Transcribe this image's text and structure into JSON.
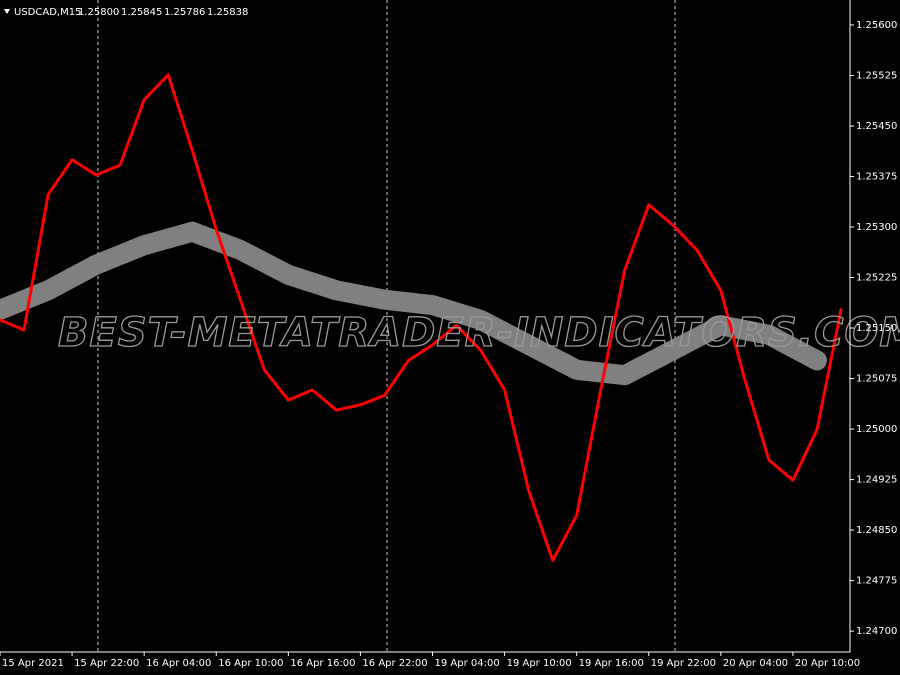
{
  "chart": {
    "symbol": "USDCAD,M15",
    "quote": [
      "1.25800",
      "1.25845",
      "1.25786",
      "1.25838"
    ],
    "watermark": "BEST-METATRADER-INDICATORS.COM",
    "ylim": [
      1.24669,
      1.25637
    ],
    "xlim": [
      0,
      283
    ],
    "yticks": [
      {
        "value": 1.256,
        "label": "1.25600"
      },
      {
        "value": 1.25525,
        "label": "1.25525"
      },
      {
        "value": 1.2545,
        "label": "1.25450"
      },
      {
        "value": 1.25375,
        "label": "1.25375"
      },
      {
        "value": 1.253,
        "label": "1.25300"
      },
      {
        "value": 1.25225,
        "label": "1.25225"
      },
      {
        "value": 1.2515,
        "label": "1.25150"
      },
      {
        "value": 1.25075,
        "label": "1.25075"
      },
      {
        "value": 1.25,
        "label": "1.25000"
      },
      {
        "value": 1.24925,
        "label": "1.24925"
      },
      {
        "value": 1.2485,
        "label": "1.24850"
      },
      {
        "value": 1.24775,
        "label": "1.24775"
      },
      {
        "value": 1.247,
        "label": "1.24700"
      }
    ],
    "xticks": [
      {
        "value": 0,
        "label": "15 Apr 2021"
      },
      {
        "value": 24,
        "label": "15 Apr 22:00"
      },
      {
        "value": 48,
        "label": "16 Apr 04:00"
      },
      {
        "value": 72,
        "label": "16 Apr 10:00"
      },
      {
        "value": 96,
        "label": "16 Apr 16:00"
      },
      {
        "value": 120,
        "label": "16 Apr 22:00"
      },
      {
        "value": 144,
        "label": "19 Apr 04:00"
      },
      {
        "value": 168,
        "label": "19 Apr 10:00"
      },
      {
        "value": 192,
        "label": "19 Apr 16:00"
      },
      {
        "value": 216,
        "label": "19 Apr 22:00"
      },
      {
        "value": 240,
        "label": "20 Apr 04:00"
      },
      {
        "value": 264,
        "label": "20 Apr 10:00"
      }
    ],
    "series": [
      {
        "color": "#808080",
        "x": [
          0,
          16,
          32,
          48,
          64,
          80,
          96,
          112,
          128,
          144,
          160,
          176,
          192,
          208,
          224,
          240,
          256,
          272
        ],
        "values": [
          1.25177,
          1.25206,
          1.25244,
          1.25273,
          1.25293,
          1.25266,
          1.25229,
          1.25206,
          1.25192,
          1.25184,
          1.25162,
          1.25125,
          1.25088,
          1.2508,
          1.25117,
          1.25154,
          1.2514,
          1.25102
        ]
      },
      {
        "color": "#ff0000",
        "x": [
          0,
          8,
          16,
          24,
          32,
          40,
          48,
          56,
          64,
          72,
          80,
          88,
          96,
          104,
          112,
          120,
          128,
          136,
          144,
          152,
          160,
          168,
          176,
          184,
          192,
          200,
          208,
          216,
          224,
          232,
          240,
          248,
          256,
          264,
          272,
          280
        ],
        "values": [
          1.25162,
          1.25147,
          1.25348,
          1.254,
          1.25377,
          1.25392,
          1.25489,
          1.25526,
          1.25414,
          1.25296,
          1.25192,
          1.25088,
          1.25043,
          1.25058,
          1.25028,
          1.25036,
          1.2505,
          1.25102,
          1.25125,
          1.25154,
          1.25117,
          1.25058,
          1.24909,
          1.24805,
          1.24872,
          1.25058,
          1.25236,
          1.25333,
          1.25303,
          1.25266,
          1.25206,
          1.25073,
          1.24954,
          1.24924,
          1.24999,
          1.25177
        ]
      }
    ]
  }
}
